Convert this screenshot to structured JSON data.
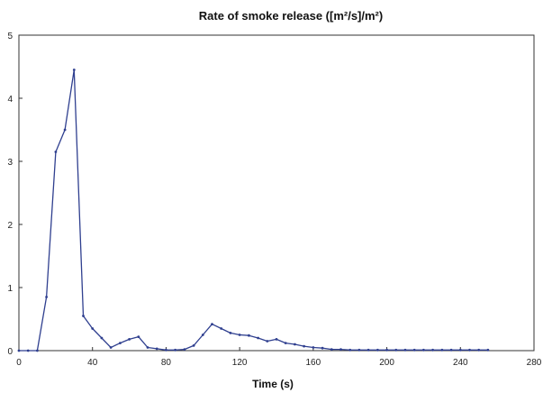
{
  "chart_data": {
    "type": "line",
    "title": "Rate of smoke release ([m²/s]/m²)",
    "xlabel": "Time (s)",
    "ylabel": "",
    "xlim": [
      0,
      280
    ],
    "ylim": [
      0,
      5
    ],
    "xticks": [
      0,
      40,
      80,
      120,
      160,
      200,
      240,
      280
    ],
    "yticks": [
      0,
      1,
      2,
      3,
      4,
      5
    ],
    "grid": false,
    "legend": "none",
    "colors": {
      "line": "#2f3f8f",
      "axis": "#333333",
      "background": "#ffffff"
    },
    "series": [
      {
        "x": [
          0,
          5,
          10,
          15,
          20,
          25,
          30,
          35,
          40,
          45,
          50,
          55,
          60,
          65,
          70,
          75,
          80,
          85,
          90,
          95,
          100,
          105,
          110,
          115,
          120,
          125,
          130,
          135,
          140,
          145,
          150,
          155,
          160,
          165,
          170,
          175,
          180,
          185,
          190,
          195,
          200,
          205,
          210,
          215,
          220,
          225,
          230,
          235,
          240,
          245,
          250,
          255
        ],
        "y": [
          0,
          0,
          0,
          0.85,
          3.15,
          3.5,
          4.45,
          0.55,
          0.35,
          0.2,
          0.05,
          0.12,
          0.18,
          0.22,
          0.05,
          0.03,
          0.01,
          0.01,
          0.02,
          0.08,
          0.25,
          0.42,
          0.35,
          0.28,
          0.25,
          0.24,
          0.2,
          0.15,
          0.18,
          0.12,
          0.1,
          0.07,
          0.05,
          0.04,
          0.02,
          0.02,
          0.01,
          0.01,
          0.01,
          0.01,
          0.01,
          0.01,
          0.01,
          0.01,
          0.01,
          0.01,
          0.01,
          0.01,
          0.01,
          0.01,
          0.01,
          0.01
        ]
      }
    ]
  }
}
